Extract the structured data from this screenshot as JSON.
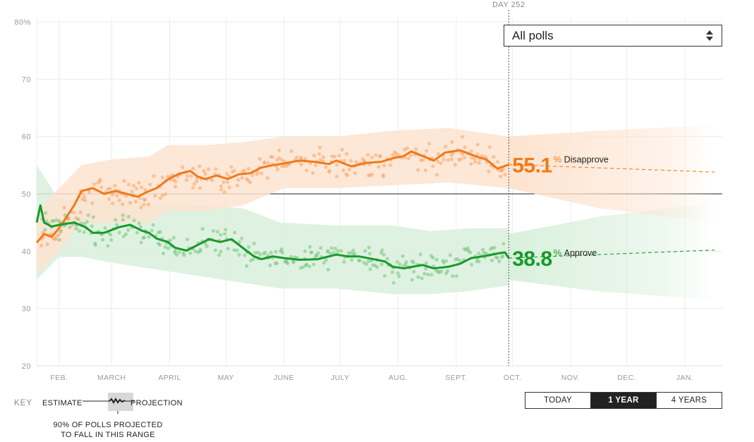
{
  "poll_filter": {
    "selected": "All polls"
  },
  "day_marker": "DAY 252",
  "range_buttons": [
    {
      "label": "TODAY",
      "active": false
    },
    {
      "label": "1 YEAR",
      "active": true
    },
    {
      "label": "4 YEARS",
      "active": false
    }
  ],
  "key": {
    "title": "KEY",
    "estimate": "ESTIMATE",
    "projection": "PROJECTION",
    "note_line1": "90% OF POLLS PROJECTED",
    "note_line2": "TO FALL IN THIS RANGE"
  },
  "colors": {
    "disapprove": "#f07a1a",
    "approve": "#179a2a",
    "disapprove_band": "#fde3cf",
    "approve_band": "#d9f0dc"
  },
  "chart_data": {
    "type": "line",
    "y_ticks": [
      "80%",
      "70",
      "60",
      "50",
      "40",
      "30",
      "20"
    ],
    "ylim": [
      20,
      80
    ],
    "x_months": [
      "FEB.",
      "MARCH",
      "APRIL",
      "MAY",
      "JUNE",
      "JULY",
      "AUG.",
      "SEPT.",
      "OCT.",
      "NOV.",
      "DEC.",
      "JAN."
    ],
    "x_month_days": [
      12,
      40,
      71,
      101,
      132,
      162,
      193,
      224,
      254,
      285,
      315,
      346
    ],
    "xlim": [
      0,
      366
    ],
    "today_day": 252,
    "reference_line": 50,
    "series": [
      {
        "name": "Disapprove",
        "key": "disapprove",
        "current_value": "55.1",
        "estimate": [
          [
            0,
            41.5
          ],
          [
            4,
            43
          ],
          [
            8,
            42.5
          ],
          [
            12,
            44
          ],
          [
            16,
            46
          ],
          [
            20,
            48
          ],
          [
            24,
            50.5
          ],
          [
            30,
            51
          ],
          [
            36,
            50
          ],
          [
            42,
            50.5
          ],
          [
            48,
            50
          ],
          [
            54,
            49.5
          ],
          [
            58,
            50.2
          ],
          [
            64,
            51
          ],
          [
            70,
            52.5
          ],
          [
            76,
            53.5
          ],
          [
            82,
            54
          ],
          [
            86,
            53
          ],
          [
            90,
            52.6
          ],
          [
            96,
            53.2
          ],
          [
            102,
            52.6
          ],
          [
            108,
            53.4
          ],
          [
            114,
            53.6
          ],
          [
            120,
            54.6
          ],
          [
            126,
            55
          ],
          [
            132,
            55.3
          ],
          [
            140,
            55.8
          ],
          [
            148,
            55.6
          ],
          [
            156,
            55.2
          ],
          [
            160,
            55.8
          ],
          [
            168,
            54.8
          ],
          [
            176,
            55.4
          ],
          [
            184,
            55.6
          ],
          [
            190,
            56.2
          ],
          [
            196,
            56.6
          ],
          [
            200,
            57.4
          ],
          [
            206,
            56.6
          ],
          [
            212,
            55.8
          ],
          [
            218,
            57.2
          ],
          [
            226,
            57.6
          ],
          [
            234,
            56.6
          ],
          [
            240,
            56
          ],
          [
            246,
            54.4
          ],
          [
            252,
            55.1
          ]
        ],
        "band_upper": [
          [
            0,
            47
          ],
          [
            12,
            51
          ],
          [
            24,
            55
          ],
          [
            40,
            56
          ],
          [
            60,
            56.5
          ],
          [
            70,
            58.5
          ],
          [
            90,
            58.5
          ],
          [
            110,
            59
          ],
          [
            132,
            60
          ],
          [
            160,
            60
          ],
          [
            190,
            61
          ],
          [
            220,
            61.5
          ],
          [
            252,
            60
          ]
        ],
        "band_lower": [
          [
            0,
            36
          ],
          [
            12,
            40
          ],
          [
            24,
            45
          ],
          [
            40,
            45
          ],
          [
            60,
            45
          ],
          [
            70,
            47
          ],
          [
            90,
            47
          ],
          [
            110,
            48
          ],
          [
            132,
            51
          ],
          [
            160,
            51
          ],
          [
            190,
            51.5
          ],
          [
            220,
            52
          ],
          [
            252,
            51
          ]
        ],
        "projection": [
          [
            252,
            55.1
          ],
          [
            362,
            53.8
          ]
        ],
        "projection_upper": [
          [
            252,
            60
          ],
          [
            300,
            61
          ],
          [
            362,
            62
          ]
        ],
        "projection_lower": [
          [
            252,
            51
          ],
          [
            300,
            47.5
          ],
          [
            362,
            45
          ]
        ]
      },
      {
        "name": "Approve",
        "key": "approve",
        "current_value": "38.8",
        "estimate": [
          [
            0,
            45
          ],
          [
            2,
            48
          ],
          [
            4,
            45
          ],
          [
            8,
            44.3
          ],
          [
            12,
            44.6
          ],
          [
            20,
            45
          ],
          [
            26,
            44.2
          ],
          [
            30,
            43.2
          ],
          [
            36,
            43.2
          ],
          [
            44,
            44.2
          ],
          [
            50,
            44.6
          ],
          [
            56,
            43.6
          ],
          [
            60,
            43.2
          ],
          [
            64,
            42.2
          ],
          [
            70,
            41.6
          ],
          [
            74,
            40.6
          ],
          [
            80,
            40.1
          ],
          [
            86,
            41.1
          ],
          [
            92,
            42.1
          ],
          [
            98,
            41.6
          ],
          [
            104,
            42.1
          ],
          [
            110,
            40.6
          ],
          [
            116,
            39.1
          ],
          [
            120,
            38.6
          ],
          [
            126,
            39.1
          ],
          [
            132,
            38.8
          ],
          [
            140,
            38.5
          ],
          [
            150,
            38.6
          ],
          [
            160,
            39.4
          ],
          [
            166,
            39.1
          ],
          [
            172,
            39.1
          ],
          [
            180,
            38.6
          ],
          [
            186,
            38.2
          ],
          [
            190,
            37.3
          ],
          [
            196,
            37
          ],
          [
            206,
            37.6
          ],
          [
            212,
            37
          ],
          [
            220,
            37.3
          ],
          [
            226,
            37.8
          ],
          [
            232,
            38.8
          ],
          [
            240,
            39.2
          ],
          [
            246,
            39.6
          ],
          [
            250,
            39.8
          ],
          [
            252,
            38.8
          ]
        ],
        "band_upper": [
          [
            0,
            55
          ],
          [
            12,
            49
          ],
          [
            24,
            49
          ],
          [
            40,
            49
          ],
          [
            60,
            48.5
          ],
          [
            80,
            48
          ],
          [
            110,
            47.5
          ],
          [
            130,
            45
          ],
          [
            160,
            44.5
          ],
          [
            190,
            44.5
          ],
          [
            210,
            43.5
          ],
          [
            230,
            44
          ],
          [
            252,
            44
          ]
        ],
        "band_lower": [
          [
            0,
            35
          ],
          [
            12,
            39
          ],
          [
            24,
            39
          ],
          [
            40,
            38
          ],
          [
            60,
            37
          ],
          [
            80,
            36
          ],
          [
            110,
            34.5
          ],
          [
            130,
            33.5
          ],
          [
            160,
            33.5
          ],
          [
            190,
            32.5
          ],
          [
            210,
            32.5
          ],
          [
            230,
            33
          ],
          [
            252,
            34
          ]
        ],
        "projection": [
          [
            252,
            38.8
          ],
          [
            362,
            40.2
          ]
        ],
        "projection_upper": [
          [
            252,
            43
          ],
          [
            300,
            46
          ],
          [
            362,
            48.5
          ]
        ],
        "projection_lower": [
          [
            252,
            35
          ],
          [
            300,
            33
          ],
          [
            362,
            31.5
          ]
        ]
      }
    ]
  }
}
